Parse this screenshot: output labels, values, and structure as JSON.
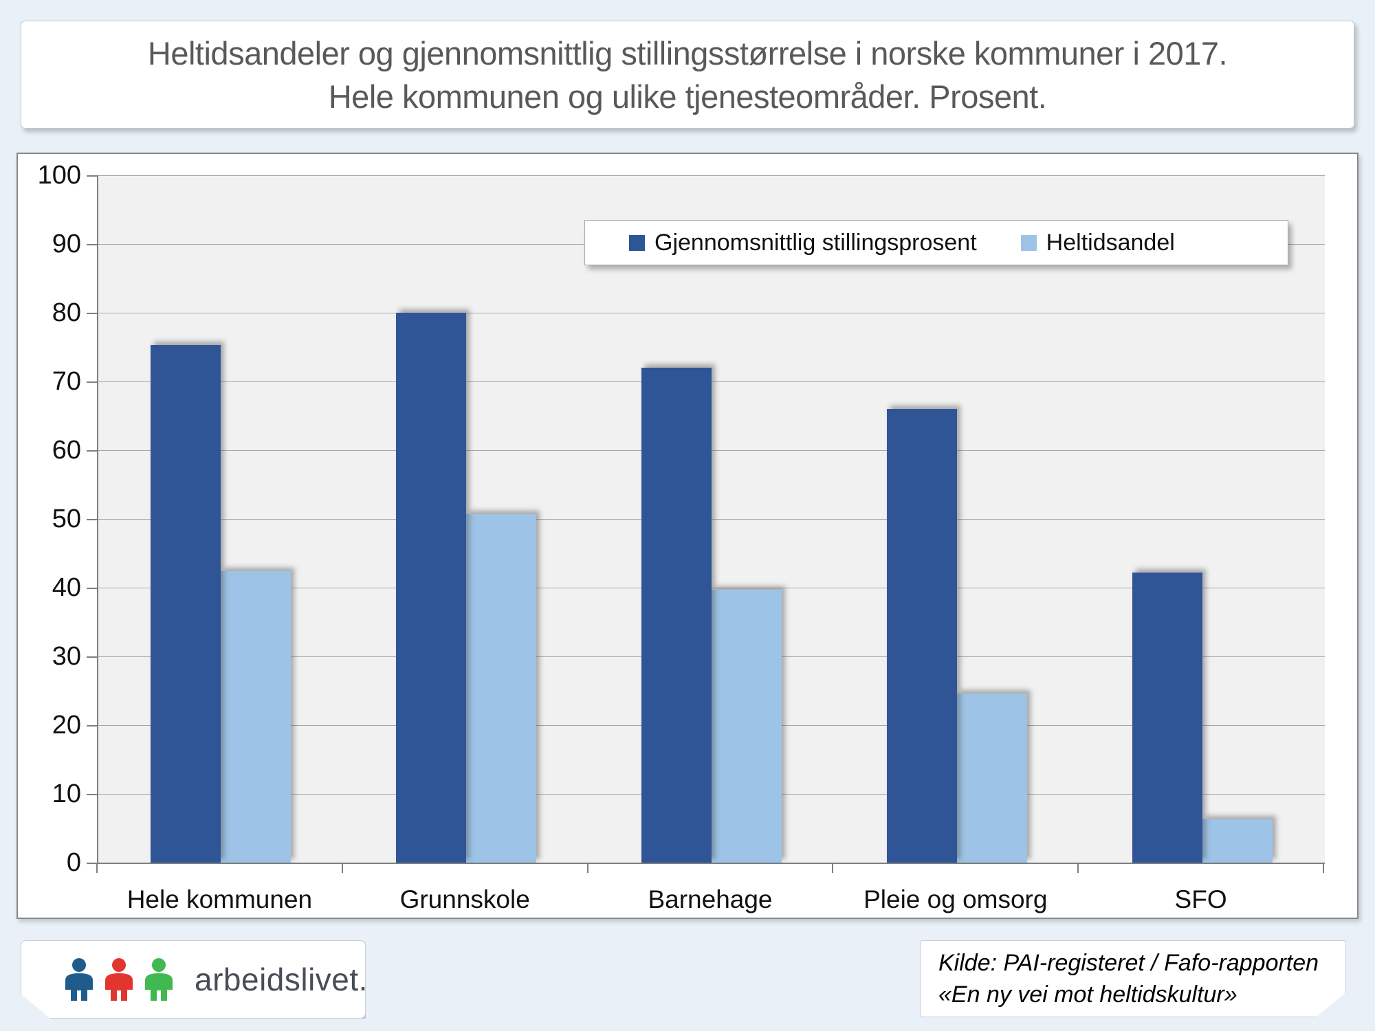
{
  "title": {
    "line1": "Heltidsandeler og gjennomsnittlig stillingsstørrelse i norske kommuner i 2017.",
    "line2": "Hele kommunen og ulike tjenesteområder. Prosent."
  },
  "chart_data": {
    "type": "bar",
    "categories": [
      "Hele kommunen",
      "Grunnskole",
      "Barnehage",
      "Pleie og omsorg",
      "SFO"
    ],
    "series": [
      {
        "name": "Gjennomsnittlig stillingsprosent",
        "color": "#2F5597",
        "values": [
          75.3,
          80.0,
          72.0,
          66.0,
          42.2
        ]
      },
      {
        "name": "Heltidsandel",
        "color": "#9DC3E6",
        "values": [
          42.4,
          50.7,
          39.7,
          24.6,
          6.3
        ]
      }
    ],
    "ylim": [
      0,
      100
    ],
    "yticks": [
      0,
      10,
      20,
      30,
      40,
      50,
      60,
      70,
      80,
      90,
      100
    ],
    "grid": true,
    "legend_position": "top-right",
    "plot_bg": "#F1F1F2",
    "gridline_color": "#A6A6A6",
    "axis_color": "#7F7F7F"
  },
  "footer": {
    "logo_text": "arbeidslivet.no",
    "logo_colors": [
      "#1F5C8B",
      "#E23530",
      "#3FB950"
    ],
    "source_line1": "Kilde: PAI-registeret / Fafo-rapporten",
    "source_line2": "«En ny vei mot heltidskultur»"
  }
}
